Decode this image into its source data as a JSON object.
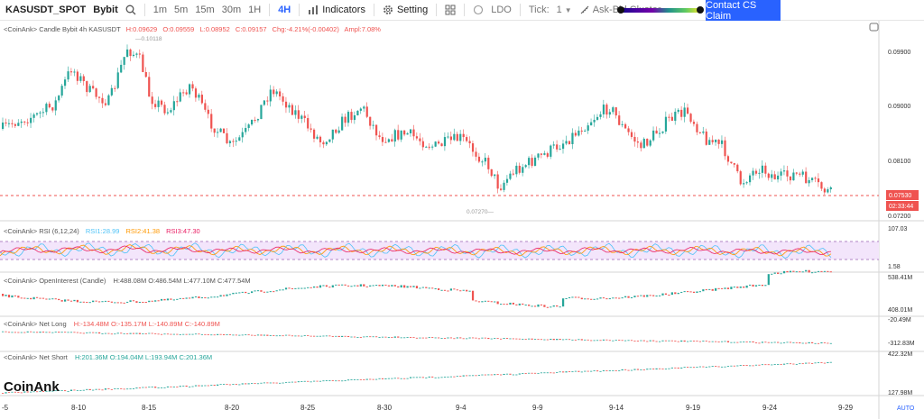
{
  "toolbar": {
    "symbol": "KASUSDT_SPOT",
    "exchange": "Bybit",
    "timeframes": [
      "1m",
      "5m",
      "15m",
      "30m",
      "1H",
      "4H"
    ],
    "active_timeframe": "4H",
    "indicators_label": "Indicators",
    "setting_label": "Setting",
    "ldo_label": "LDO",
    "tick_label": "Tick:",
    "tick_value": "1",
    "ask_bid_label": "Ask-Bid Cluster",
    "contact_label": "Contact CS Claim",
    "gradient_low": 0.0,
    "gradient_high": 0.99
  },
  "main_pane": {
    "legend_prefix": "<CoinAnk> Candle  Bybit 4h KASUSDT",
    "H": "H:0.09629",
    "O": "O:0.09559",
    "L": "L:0.08952",
    "C": "C:0.09157",
    "chg": "Chg:-4.21%(-0.00402)",
    "ampl": "Ampl:7.08%",
    "high_marker": "0.10118",
    "low_marker": "0.07270",
    "price_ticks": [
      "0.09900",
      "0.09000",
      "0.08100",
      "0.07200"
    ],
    "current_price": "0.07530",
    "countdown": "02:33:44"
  },
  "rsi_pane": {
    "legend": "<CoinAnk> RSI  (6,12,24)",
    "rsi1": "RSI1:28.99",
    "rsi2": "RSI2:41.38",
    "rsi3": "RSI3:47.30",
    "axis_top": "107.03",
    "axis_bottom": "1.58"
  },
  "oi_pane": {
    "legend": "<CoinAnk> OpenInterest (Candle)",
    "values": "H:488.08M  O:486.54M  L:477.10M  C:477.54M",
    "axis_top": "538.41M",
    "axis_bottom": "408.01M"
  },
  "net_long_pane": {
    "legend": "<CoinAnk> Net Long",
    "values": "H:-134.48M  O:-135.17M  L:-140.89M  C:-140.89M",
    "axis_top": "-20.49M",
    "axis_bottom": "-312.83M"
  },
  "net_short_pane": {
    "legend": "<CoinAnk> Net Short",
    "values": "H:201.36M  O:194.04M  L:193.94M  C:201.36M",
    "axis_top": "422.32M",
    "axis_bottom": "127.98M"
  },
  "watermark": "CoinAnk",
  "x_axis": {
    "ticks": [
      "-5",
      "8-10",
      "8-15",
      "8-20",
      "8-25",
      "8-30",
      "9-4",
      "9-9",
      "9-14",
      "9-19",
      "9-24",
      "9-29"
    ],
    "auto_label": "AUTO"
  },
  "colors": {
    "up": "#26a69a",
    "down": "#ef5350",
    "accent": "#2962ff",
    "rsi1": "#4fc3f7",
    "rsi2": "#ff9800",
    "rsi3": "#e91e63"
  }
}
